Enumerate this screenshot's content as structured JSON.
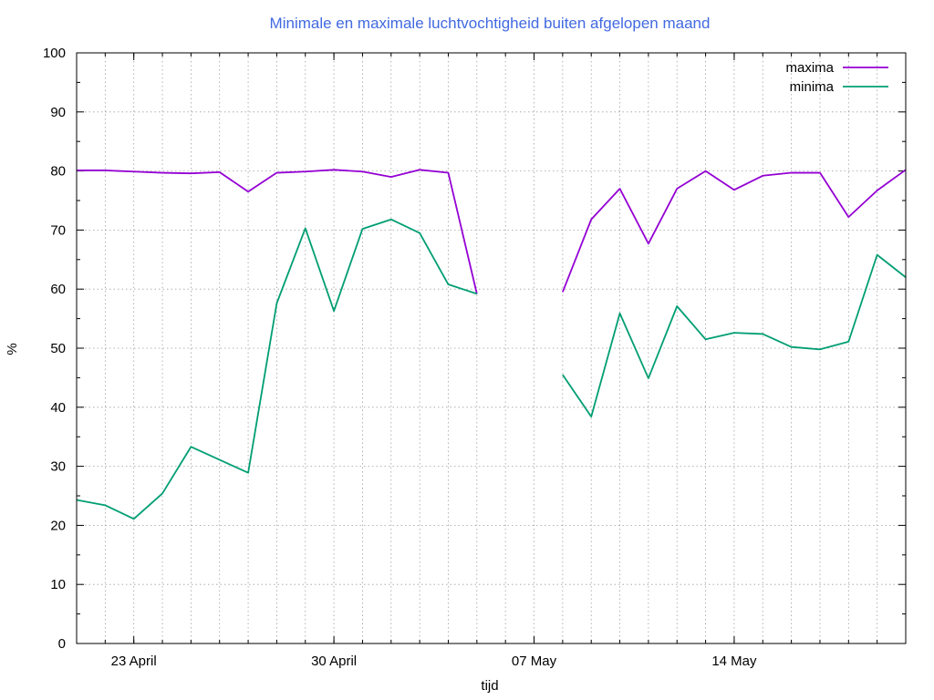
{
  "chart_data": {
    "type": "line",
    "title": "Minimale en maximale luchtvochtigheid buiten afgelopen maand",
    "title_color": "#4169e1",
    "xlabel": "tijd",
    "ylabel": "%",
    "ylim": [
      0,
      100
    ],
    "yticks": [
      0,
      10,
      20,
      30,
      40,
      50,
      60,
      70,
      80,
      90,
      100
    ],
    "xlim": [
      "2024-04-21",
      "2024-05-20"
    ],
    "xticks": [
      {
        "date": "2024-04-23",
        "label": "23 April"
      },
      {
        "date": "2024-04-30",
        "label": "30 April"
      },
      {
        "date": "2024-05-07",
        "label": "07 May"
      },
      {
        "date": "2024-05-14",
        "label": "14 May"
      }
    ],
    "grid": true,
    "legend_position": "top-right",
    "x": [
      "2024-04-21",
      "2024-04-22",
      "2024-04-23",
      "2024-04-24",
      "2024-04-25",
      "2024-04-26",
      "2024-04-27",
      "2024-04-28",
      "2024-04-29",
      "2024-04-30",
      "2024-05-01",
      "2024-05-02",
      "2024-05-03",
      "2024-05-04",
      "2024-05-05",
      "2024-05-06",
      "2024-05-07",
      "2024-05-08",
      "2024-05-09",
      "2024-05-10",
      "2024-05-11",
      "2024-05-12",
      "2024-05-13",
      "2024-05-14",
      "2024-05-15",
      "2024-05-16",
      "2024-05-17",
      "2024-05-18",
      "2024-05-19",
      "2024-05-20"
    ],
    "series": [
      {
        "name": "maxima",
        "color": "#9400d3",
        "values": [
          80.1,
          80.1,
          79.9,
          79.7,
          79.6,
          79.8,
          76.5,
          79.7,
          79.9,
          80.2,
          79.9,
          79.0,
          80.2,
          79.7,
          59.2,
          null,
          null,
          59.5,
          71.8,
          77.0,
          67.7,
          77.0,
          80.0,
          76.8,
          79.2,
          79.7,
          79.7,
          72.2,
          76.7,
          80.2
        ]
      },
      {
        "name": "minima",
        "color": "#009e73",
        "values": [
          24.3,
          23.4,
          21.1,
          25.4,
          33.3,
          31.1,
          28.9,
          57.6,
          70.3,
          56.3,
          70.2,
          71.8,
          69.5,
          60.8,
          59.2,
          null,
          null,
          45.5,
          38.4,
          55.9,
          44.9,
          57.1,
          51.5,
          52.6,
          52.4,
          50.2,
          49.8,
          51.1,
          65.8,
          62.0
        ]
      }
    ]
  }
}
